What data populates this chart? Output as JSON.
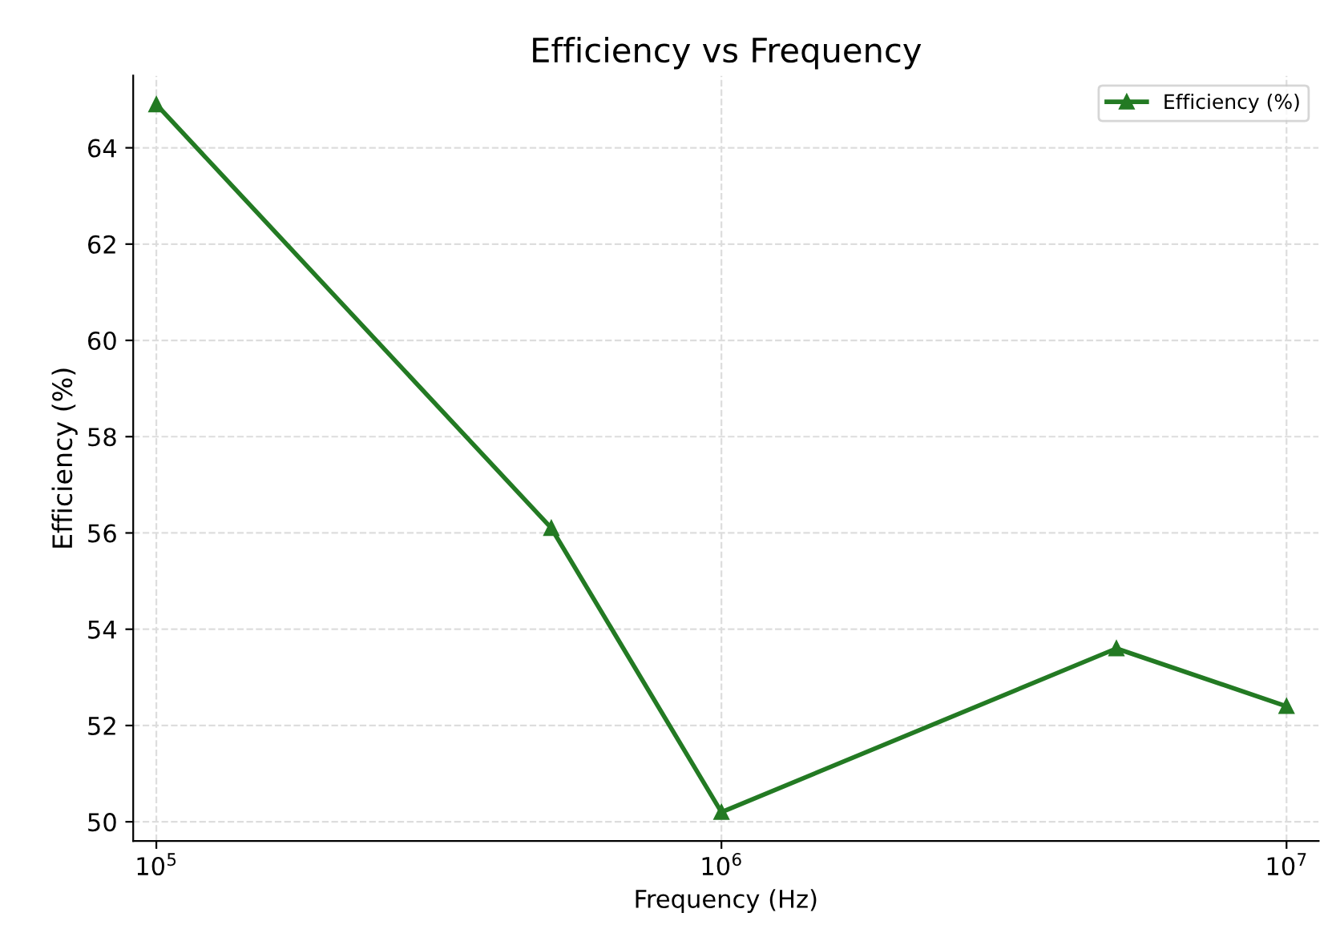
{
  "chart_data": {
    "type": "line",
    "title": "Efficiency vs Frequency",
    "xlabel": "Frequency (Hz)",
    "ylabel": "Efficiency (%)",
    "x": [
      100000,
      500000,
      1000000,
      5000000,
      10000000
    ],
    "series": [
      {
        "name": "Efficiency (%)",
        "color": "#237a23",
        "values": [
          64.9,
          56.1,
          50.2,
          53.6,
          52.4
        ]
      }
    ],
    "log": "x",
    "xlim": [
      91000,
      11400000
    ],
    "xticks": [
      {
        "value": 100000,
        "label": "10$^{5}$"
      },
      {
        "value": 1000000,
        "label": "10$^{6}$"
      },
      {
        "value": 10000000,
        "label": "10$^{7}$"
      }
    ],
    "ylim": [
      49.6,
      65.5
    ],
    "yticks": [
      50,
      52,
      54,
      56,
      58,
      60,
      62,
      64
    ],
    "grid": true,
    "legend": "top right",
    "marker": "triangle",
    "line_style": "solid"
  }
}
